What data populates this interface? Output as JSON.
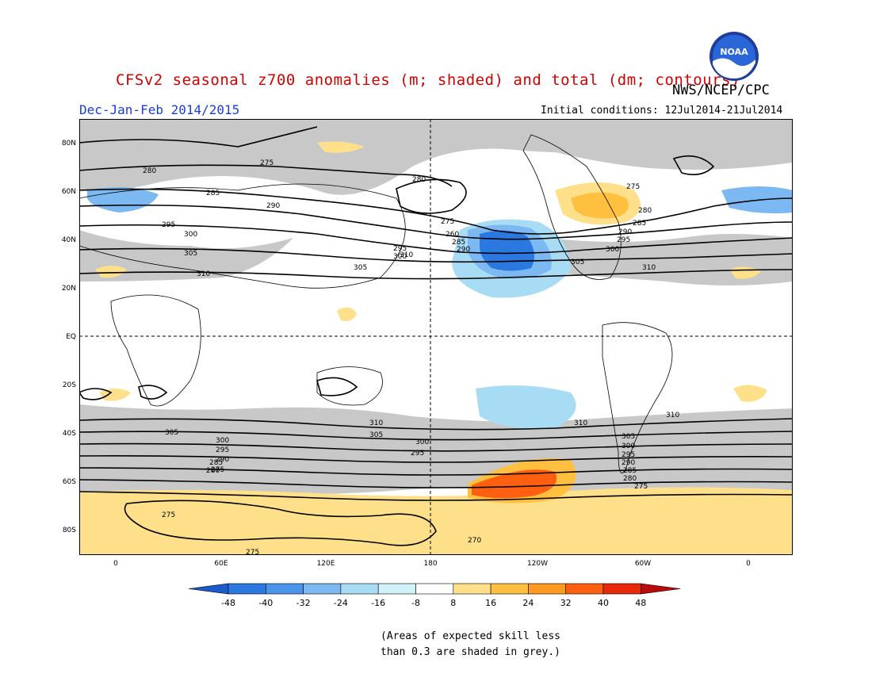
{
  "header": {
    "title": "CFSv2 seasonal z700 anomalies (m; shaded) and total (dm; contours)",
    "agency": "NWS/NCEP/CPC",
    "period": "Dec-Jan-Feb 2014/2015",
    "initial_conditions": "Initial conditions: 12Jul2014-21Jul2014",
    "logo_text": "NOAA"
  },
  "map": {
    "lat_labels": [
      "80N",
      "60N",
      "40N",
      "20N",
      "EQ",
      "20S",
      "40S",
      "60S",
      "80S"
    ],
    "lon_labels": [
      "0",
      "60E",
      "120E",
      "180",
      "120W",
      "60W",
      "0"
    ],
    "contour_labels": [
      "275",
      "280",
      "285",
      "290",
      "295",
      "300",
      "305",
      "310",
      "270",
      "260"
    ]
  },
  "colorbar": {
    "ticks": [
      "-48",
      "-40",
      "-32",
      "-24",
      "-16",
      "-8",
      "8",
      "16",
      "24",
      "32",
      "40",
      "48"
    ],
    "colors": [
      "#1a5ccc",
      "#2a78e0",
      "#4a94ea",
      "#7cb8f2",
      "#a8dcf4",
      "#d2f2fa",
      "#ffffff",
      "#ffe08a",
      "#ffc040",
      "#ff9a20",
      "#ff6010",
      "#e82a0a",
      "#b80c0c"
    ]
  },
  "note": {
    "line1": "(Areas of expected skill less",
    "line2": "than 0.3 are shaded in grey.)"
  }
}
